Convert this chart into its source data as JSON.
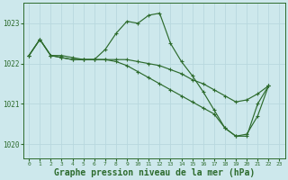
{
  "background_color": "#cde8ec",
  "grid_color": "#b8d8de",
  "line_color": "#2d6b2d",
  "marker": "+",
  "xlabel": "Graphe pression niveau de la mer (hPa)",
  "xlabel_fontsize": 7,
  "yticks": [
    1020,
    1021,
    1022,
    1023
  ],
  "xticks": [
    0,
    1,
    2,
    3,
    4,
    5,
    6,
    7,
    8,
    9,
    10,
    11,
    12,
    13,
    14,
    15,
    16,
    17,
    18,
    19,
    20,
    21,
    22,
    23
  ],
  "xlim": [
    -0.5,
    23.5
  ],
  "ylim": [
    1019.65,
    1023.5
  ],
  "series": [
    {
      "x": [
        0,
        1,
        2,
        3,
        4,
        5,
        6,
        7,
        8,
        9,
        10,
        11,
        12,
        13,
        14,
        15,
        16,
        17,
        18,
        19,
        20,
        21,
        22
      ],
      "y": [
        1022.2,
        1022.6,
        1022.2,
        1022.2,
        1022.15,
        1022.1,
        1022.1,
        1022.35,
        1022.75,
        1023.05,
        1023.0,
        1023.2,
        1023.25,
        1022.5,
        1022.05,
        1021.7,
        1021.3,
        1020.85,
        1020.4,
        1020.2,
        1020.2,
        1021.0,
        1021.45
      ]
    },
    {
      "x": [
        0,
        1,
        2,
        3,
        4,
        5,
        6,
        7,
        8,
        9,
        10,
        11,
        12,
        13,
        14,
        15,
        16,
        17,
        18,
        19,
        20,
        21,
        22
      ],
      "y": [
        1022.2,
        1022.6,
        1022.2,
        1022.15,
        1022.1,
        1022.1,
        1022.1,
        1022.1,
        1022.1,
        1022.1,
        1022.05,
        1022.0,
        1021.95,
        1021.85,
        1021.75,
        1021.6,
        1021.5,
        1021.35,
        1021.2,
        1021.05,
        1021.1,
        1021.25,
        1021.45
      ]
    },
    {
      "x": [
        0,
        1,
        2,
        3,
        4,
        5,
        6,
        7,
        8,
        9,
        10,
        11,
        12,
        13,
        14,
        15,
        16,
        17,
        18,
        19,
        20,
        21,
        22
      ],
      "y": [
        1022.2,
        1022.6,
        1022.2,
        1022.15,
        1022.1,
        1022.1,
        1022.1,
        1022.1,
        1022.05,
        1021.95,
        1021.8,
        1021.65,
        1021.5,
        1021.35,
        1021.2,
        1021.05,
        1020.9,
        1020.75,
        1020.4,
        1020.2,
        1020.25,
        1020.7,
        1021.45
      ]
    }
  ]
}
